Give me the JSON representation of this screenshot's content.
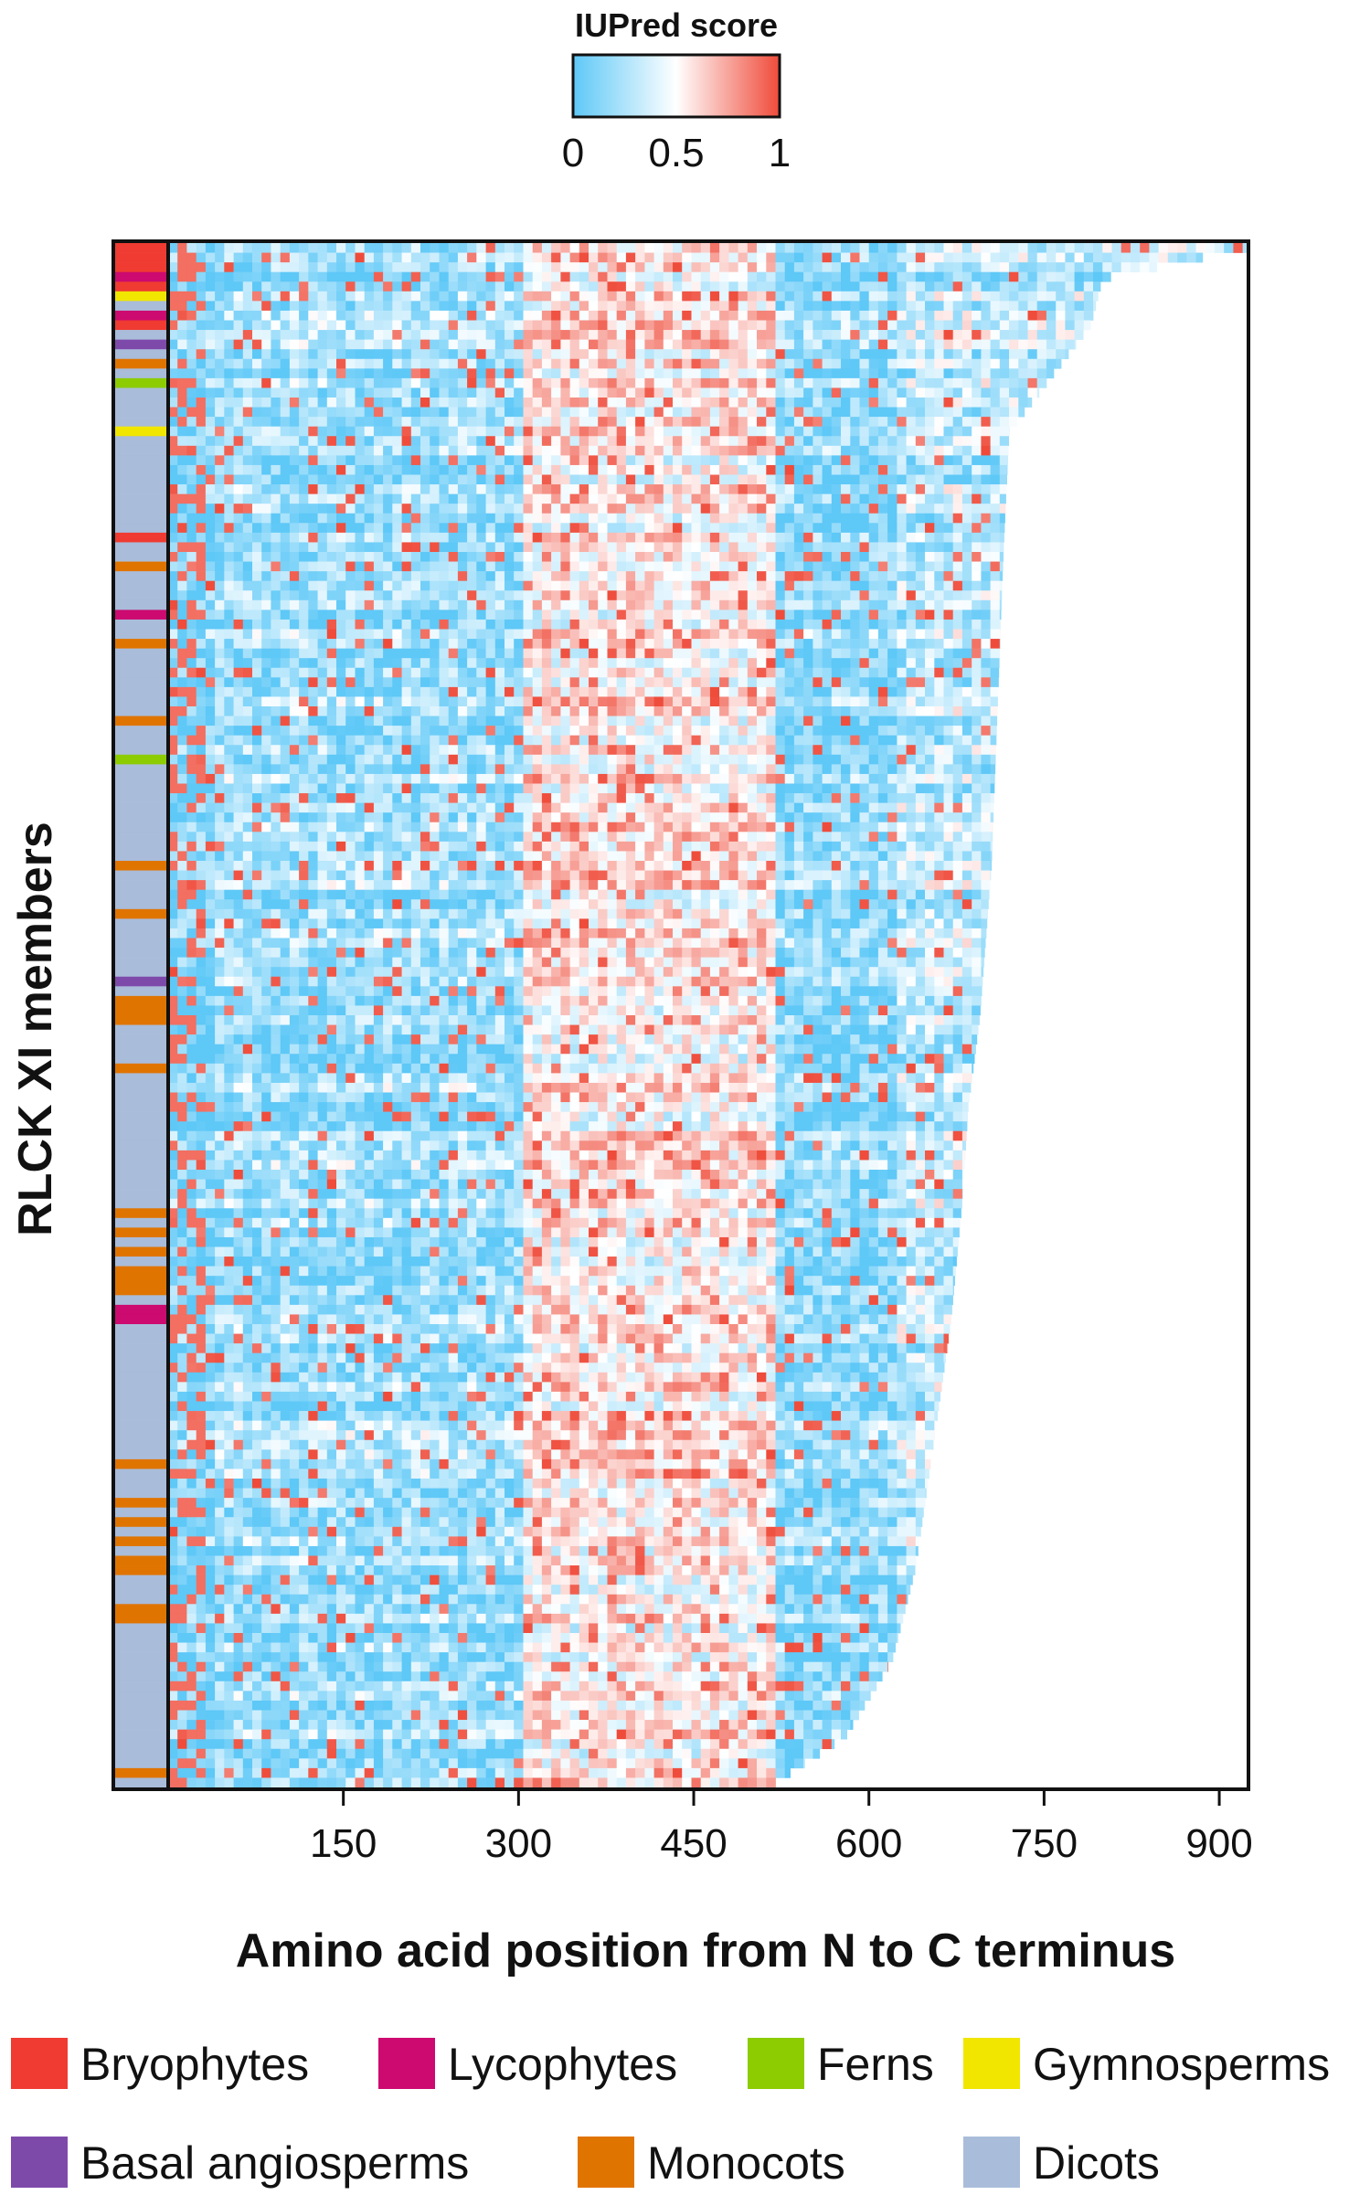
{
  "chart_data": {
    "type": "heatmap",
    "title": "",
    "xlabel": "Amino acid position from N to C terminus",
    "ylabel": "RLCK XI members",
    "xlim": [
      0,
      925
    ],
    "x_ticks": [
      150,
      300,
      450,
      600,
      750,
      900
    ],
    "x_tick_labels": [
      "150",
      "300",
      "450",
      "600",
      "750",
      "900"
    ],
    "colorbar": {
      "title": "IUPred score",
      "range": [
        0,
        1
      ],
      "tick_values": [
        0,
        0.5,
        1
      ],
      "tick_labels": [
        "0",
        "0.5",
        "1"
      ],
      "colors": [
        "#5ec8f7",
        "#ffffff",
        "#ef4b3a"
      ]
    },
    "n_rows": 160,
    "row_lengths_note": "",
    "protein_length_profile": [
      [
        0,
        925
      ],
      [
        0.02,
        800
      ],
      [
        0.05,
        790
      ],
      [
        0.08,
        760
      ],
      [
        0.12,
        720
      ],
      [
        0.2,
        715
      ],
      [
        0.3,
        710
      ],
      [
        0.4,
        705
      ],
      [
        0.5,
        695
      ],
      [
        0.56,
        685
      ],
      [
        0.62,
        680
      ],
      [
        0.7,
        670
      ],
      [
        0.78,
        655
      ],
      [
        0.86,
        640
      ],
      [
        0.92,
        620
      ],
      [
        0.97,
        580
      ],
      [
        1.0,
        520
      ]
    ],
    "groups": [
      {
        "name": "Bryophytes",
        "color": "#ef3b32"
      },
      {
        "name": "Lycophytes",
        "color": "#cc0a6f"
      },
      {
        "name": "Ferns",
        "color": "#8ccc00"
      },
      {
        "name": "Gymnosperms",
        "color": "#f0e600"
      },
      {
        "name": "Basal angiosperms",
        "color": "#7e4aaa"
      },
      {
        "name": "Monocots",
        "color": "#e07400"
      },
      {
        "name": "Dicots",
        "color": "#a9bcda"
      }
    ],
    "row_groups": [
      "Bryophytes",
      "Bryophytes",
      "Bryophytes",
      "Lycophytes",
      "Bryophytes",
      "Gymnosperms",
      "Dicots",
      "Lycophytes",
      "Bryophytes",
      "Dicots",
      "Basal angiosperms",
      "Dicots",
      "Monocots",
      "Dicots",
      "Ferns",
      "Dicots",
      "Dicots",
      "Dicots",
      "Dicots",
      "Gymnosperms",
      "Dicots",
      "Dicots",
      "Dicots",
      "Dicots",
      "Dicots",
      "Dicots",
      "Dicots",
      "Dicots",
      "Dicots",
      "Dicots",
      "Bryophytes",
      "Dicots",
      "Dicots",
      "Monocots",
      "Dicots",
      "Dicots",
      "Dicots",
      "Dicots",
      "Lycophytes",
      "Dicots",
      "Dicots",
      "Monocots",
      "Dicots",
      "Dicots",
      "Dicots",
      "Dicots",
      "Dicots",
      "Dicots",
      "Dicots",
      "Monocots",
      "Dicots",
      "Dicots",
      "Dicots",
      "Ferns",
      "Dicots",
      "Dicots",
      "Dicots",
      "Dicots",
      "Dicots",
      "Dicots",
      "Dicots",
      "Dicots",
      "Dicots",
      "Dicots",
      "Monocots",
      "Dicots",
      "Dicots",
      "Dicots",
      "Dicots",
      "Monocots",
      "Dicots",
      "Dicots",
      "Dicots",
      "Dicots",
      "Dicots",
      "Dicots",
      "Basal angiosperms",
      "Dicots",
      "Monocots",
      "Monocots",
      "Monocots",
      "Dicots",
      "Dicots",
      "Dicots",
      "Dicots",
      "Monocots",
      "Dicots",
      "Dicots",
      "Dicots",
      "Dicots",
      "Dicots",
      "Dicots",
      "Dicots",
      "Dicots",
      "Dicots",
      "Dicots",
      "Dicots",
      "Dicots",
      "Dicots",
      "Dicots",
      "Monocots",
      "Dicots",
      "Monocots",
      "Dicots",
      "Monocots",
      "Dicots",
      "Monocots",
      "Monocots",
      "Monocots",
      "Dicots",
      "Lycophytes",
      "Lycophytes",
      "Dicots",
      "Dicots",
      "Dicots",
      "Dicots",
      "Dicots",
      "Dicots",
      "Dicots",
      "Dicots",
      "Dicots",
      "Dicots",
      "Dicots",
      "Dicots",
      "Dicots",
      "Dicots",
      "Monocots",
      "Dicots",
      "Dicots",
      "Dicots",
      "Monocots",
      "Dicots",
      "Monocots",
      "Dicots",
      "Monocots",
      "Dicots",
      "Monocots",
      "Monocots",
      "Dicots",
      "Dicots",
      "Dicots",
      "Monocots",
      "Monocots",
      "Dicots",
      "Dicots",
      "Dicots",
      "Dicots",
      "Dicots",
      "Dicots",
      "Dicots",
      "Dicots",
      "Dicots",
      "Dicots",
      "Dicots",
      "Dicots",
      "Dicots",
      "Dicots",
      "Dicots",
      "Monocots",
      "Dicots"
    ],
    "disorder_regions": [
      {
        "x": [
          0,
          40
        ],
        "score": 0.1
      },
      {
        "x": [
          40,
          300
        ],
        "score": 0.2
      },
      {
        "x": [
          300,
          520
        ],
        "score": 0.55
      },
      {
        "x": [
          520,
          620
        ],
        "score": 0.15
      },
      {
        "x": [
          620,
          925
        ],
        "score": 0.3
      }
    ],
    "grid": false,
    "legend_position": "bottom"
  }
}
